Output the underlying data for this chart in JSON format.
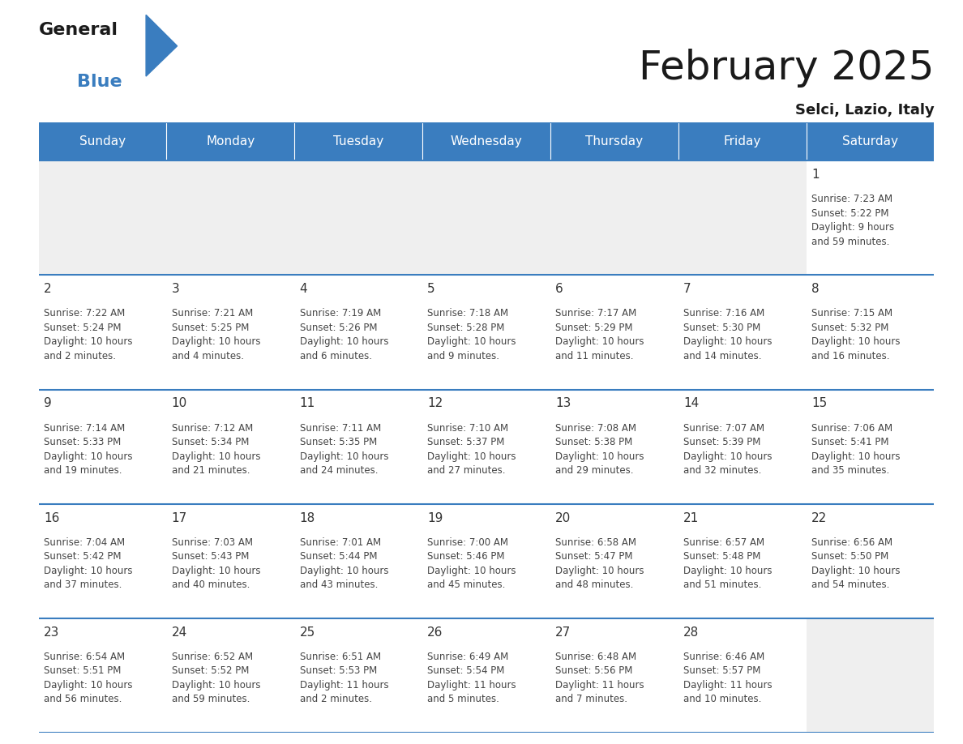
{
  "title": "February 2025",
  "subtitle": "Selci, Lazio, Italy",
  "header_color": "#3a7dbf",
  "header_text_color": "#ffffff",
  "empty_cell_bg": "#efefef",
  "cell_bg_color": "#ffffff",
  "border_color": "#3a7dbf",
  "day_text_color": "#333333",
  "info_text_color": "#444444",
  "days_of_week": [
    "Sunday",
    "Monday",
    "Tuesday",
    "Wednesday",
    "Thursday",
    "Friday",
    "Saturday"
  ],
  "calendar": [
    [
      {
        "day": null,
        "info": null
      },
      {
        "day": null,
        "info": null
      },
      {
        "day": null,
        "info": null
      },
      {
        "day": null,
        "info": null
      },
      {
        "day": null,
        "info": null
      },
      {
        "day": null,
        "info": null
      },
      {
        "day": 1,
        "info": "Sunrise: 7:23 AM\nSunset: 5:22 PM\nDaylight: 9 hours\nand 59 minutes."
      }
    ],
    [
      {
        "day": 2,
        "info": "Sunrise: 7:22 AM\nSunset: 5:24 PM\nDaylight: 10 hours\nand 2 minutes."
      },
      {
        "day": 3,
        "info": "Sunrise: 7:21 AM\nSunset: 5:25 PM\nDaylight: 10 hours\nand 4 minutes."
      },
      {
        "day": 4,
        "info": "Sunrise: 7:19 AM\nSunset: 5:26 PM\nDaylight: 10 hours\nand 6 minutes."
      },
      {
        "day": 5,
        "info": "Sunrise: 7:18 AM\nSunset: 5:28 PM\nDaylight: 10 hours\nand 9 minutes."
      },
      {
        "day": 6,
        "info": "Sunrise: 7:17 AM\nSunset: 5:29 PM\nDaylight: 10 hours\nand 11 minutes."
      },
      {
        "day": 7,
        "info": "Sunrise: 7:16 AM\nSunset: 5:30 PM\nDaylight: 10 hours\nand 14 minutes."
      },
      {
        "day": 8,
        "info": "Sunrise: 7:15 AM\nSunset: 5:32 PM\nDaylight: 10 hours\nand 16 minutes."
      }
    ],
    [
      {
        "day": 9,
        "info": "Sunrise: 7:14 AM\nSunset: 5:33 PM\nDaylight: 10 hours\nand 19 minutes."
      },
      {
        "day": 10,
        "info": "Sunrise: 7:12 AM\nSunset: 5:34 PM\nDaylight: 10 hours\nand 21 minutes."
      },
      {
        "day": 11,
        "info": "Sunrise: 7:11 AM\nSunset: 5:35 PM\nDaylight: 10 hours\nand 24 minutes."
      },
      {
        "day": 12,
        "info": "Sunrise: 7:10 AM\nSunset: 5:37 PM\nDaylight: 10 hours\nand 27 minutes."
      },
      {
        "day": 13,
        "info": "Sunrise: 7:08 AM\nSunset: 5:38 PM\nDaylight: 10 hours\nand 29 minutes."
      },
      {
        "day": 14,
        "info": "Sunrise: 7:07 AM\nSunset: 5:39 PM\nDaylight: 10 hours\nand 32 minutes."
      },
      {
        "day": 15,
        "info": "Sunrise: 7:06 AM\nSunset: 5:41 PM\nDaylight: 10 hours\nand 35 minutes."
      }
    ],
    [
      {
        "day": 16,
        "info": "Sunrise: 7:04 AM\nSunset: 5:42 PM\nDaylight: 10 hours\nand 37 minutes."
      },
      {
        "day": 17,
        "info": "Sunrise: 7:03 AM\nSunset: 5:43 PM\nDaylight: 10 hours\nand 40 minutes."
      },
      {
        "day": 18,
        "info": "Sunrise: 7:01 AM\nSunset: 5:44 PM\nDaylight: 10 hours\nand 43 minutes."
      },
      {
        "day": 19,
        "info": "Sunrise: 7:00 AM\nSunset: 5:46 PM\nDaylight: 10 hours\nand 45 minutes."
      },
      {
        "day": 20,
        "info": "Sunrise: 6:58 AM\nSunset: 5:47 PM\nDaylight: 10 hours\nand 48 minutes."
      },
      {
        "day": 21,
        "info": "Sunrise: 6:57 AM\nSunset: 5:48 PM\nDaylight: 10 hours\nand 51 minutes."
      },
      {
        "day": 22,
        "info": "Sunrise: 6:56 AM\nSunset: 5:50 PM\nDaylight: 10 hours\nand 54 minutes."
      }
    ],
    [
      {
        "day": 23,
        "info": "Sunrise: 6:54 AM\nSunset: 5:51 PM\nDaylight: 10 hours\nand 56 minutes."
      },
      {
        "day": 24,
        "info": "Sunrise: 6:52 AM\nSunset: 5:52 PM\nDaylight: 10 hours\nand 59 minutes."
      },
      {
        "day": 25,
        "info": "Sunrise: 6:51 AM\nSunset: 5:53 PM\nDaylight: 11 hours\nand 2 minutes."
      },
      {
        "day": 26,
        "info": "Sunrise: 6:49 AM\nSunset: 5:54 PM\nDaylight: 11 hours\nand 5 minutes."
      },
      {
        "day": 27,
        "info": "Sunrise: 6:48 AM\nSunset: 5:56 PM\nDaylight: 11 hours\nand 7 minutes."
      },
      {
        "day": 28,
        "info": "Sunrise: 6:46 AM\nSunset: 5:57 PM\nDaylight: 11 hours\nand 10 minutes."
      },
      {
        "day": null,
        "info": null
      }
    ]
  ],
  "logo_general_color": "#1a1a1a",
  "logo_blue_color": "#3a7dbf",
  "logo_triangle_color": "#3a7dbf",
  "title_fontsize": 36,
  "subtitle_fontsize": 13,
  "header_fontsize": 11,
  "day_num_fontsize": 11,
  "info_fontsize": 8.5
}
